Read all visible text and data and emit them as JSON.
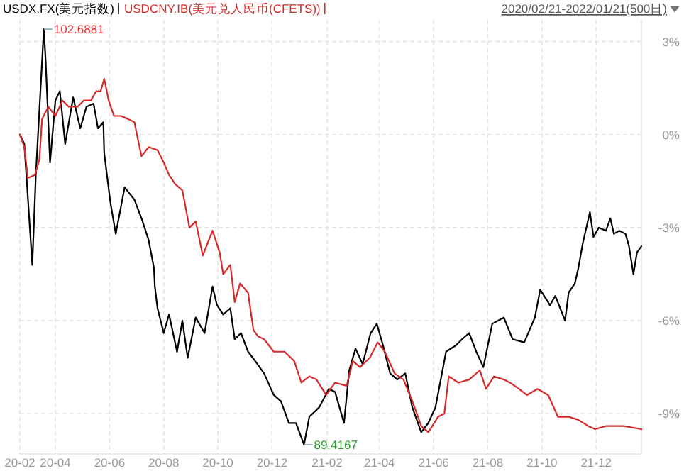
{
  "chart_data": {
    "type": "line",
    "legend": "top left",
    "grid": true,
    "ylim": [
      -10.3,
      3.7
    ],
    "yticks": [
      {
        "value": 3,
        "label": "3%"
      },
      {
        "value": 0,
        "label": "0%"
      },
      {
        "value": -3,
        "label": "-3%"
      },
      {
        "value": -6,
        "label": "-6%"
      },
      {
        "value": -9,
        "label": "-9%"
      }
    ],
    "xlim": [
      "2020-02-21",
      "2022-01-21"
    ],
    "xticks": [
      {
        "value": "2020-02-21",
        "label": "20-02"
      },
      {
        "value": "2020-04-01",
        "label": "20-04"
      },
      {
        "value": "2020-06-01",
        "label": "20-06"
      },
      {
        "value": "2020-08-01",
        "label": "20-08"
      },
      {
        "value": "2020-10-01",
        "label": "20-10"
      },
      {
        "value": "2020-12-01",
        "label": "20-12"
      },
      {
        "value": "2021-02-01",
        "label": "21-02"
      },
      {
        "value": "2021-04-01",
        "label": "21-04"
      },
      {
        "value": "2021-06-01",
        "label": "21-06"
      },
      {
        "value": "2021-08-01",
        "label": "21-08"
      },
      {
        "value": "2021-10-01",
        "label": "21-10"
      },
      {
        "value": "2021-12-01",
        "label": "21-12"
      }
    ],
    "annotations": [
      {
        "text": "102.6881",
        "x": "2020-03-19",
        "y": 3.4
      },
      {
        "text": "89.4167",
        "x": "2021-01-06",
        "y": -10.0
      },
      "2020/02/21-2022/01/21(500日)"
    ],
    "series": [
      {
        "name": "USDX.FX(美元指数)",
        "color": "#000000",
        "x": [
          "2020-02-21",
          "2020-02-26",
          "2020-03-06",
          "2020-03-10",
          "2020-03-19",
          "2020-03-21",
          "2020-03-26",
          "2020-04-01",
          "2020-04-06",
          "2020-04-12",
          "2020-04-21",
          "2020-04-29",
          "2020-05-06",
          "2020-05-14",
          "2020-05-19",
          "2020-05-25",
          "2020-05-26",
          "2020-06-02",
          "2020-06-08",
          "2020-06-18",
          "2020-06-29",
          "2020-07-07",
          "2020-07-15",
          "2020-07-21",
          "2020-07-22",
          "2020-07-25",
          "2020-08-01",
          "2020-08-07",
          "2020-08-16",
          "2020-08-22",
          "2020-08-28",
          "2020-09-06",
          "2020-09-16",
          "2020-09-25",
          "2020-09-30",
          "2020-10-07",
          "2020-10-15",
          "2020-10-20",
          "2020-10-27",
          "2020-11-04",
          "2020-11-12",
          "2020-11-22",
          "2020-12-03",
          "2020-12-11",
          "2020-12-20",
          "2020-12-28",
          "2021-01-06",
          "2021-01-12",
          "2021-01-23",
          "2021-02-03",
          "2021-02-10",
          "2021-02-20",
          "2021-02-26",
          "2021-03-05",
          "2021-03-13",
          "2021-03-22",
          "2021-03-29",
          "2021-04-05",
          "2021-04-13",
          "2021-04-21",
          "2021-04-30",
          "2021-05-08",
          "2021-05-18",
          "2021-05-26",
          "2021-06-03",
          "2021-06-15",
          "2021-06-26",
          "2021-07-03",
          "2021-07-11",
          "2021-07-19",
          "2021-07-27",
          "2021-08-06",
          "2021-08-19",
          "2021-08-29",
          "2021-09-11",
          "2021-09-23",
          "2021-09-29",
          "2021-10-10",
          "2021-10-16",
          "2021-10-27",
          "2021-10-31",
          "2021-11-07",
          "2021-11-11",
          "2021-11-16",
          "2021-11-24",
          "2021-11-28",
          "2021-12-04",
          "2021-12-12",
          "2021-12-17",
          "2021-12-21",
          "2021-12-27",
          "2022-01-03",
          "2022-01-07",
          "2022-01-12",
          "2022-01-16",
          "2022-01-21"
        ],
        "values": [
          0.0,
          -0.3,
          -4.2,
          -1.3,
          3.4,
          2.4,
          -0.9,
          1.1,
          1.4,
          -0.3,
          1.2,
          0.2,
          0.9,
          1.0,
          0.2,
          0.4,
          -0.6,
          -2.2,
          -3.2,
          -1.7,
          -2.1,
          -2.7,
          -3.4,
          -4.3,
          -4.9,
          -5.6,
          -6.4,
          -5.8,
          -7.0,
          -6.0,
          -7.2,
          -5.9,
          -6.4,
          -4.9,
          -5.5,
          -5.8,
          -5.6,
          -6.6,
          -6.4,
          -7.0,
          -7.3,
          -7.7,
          -8.4,
          -8.6,
          -9.3,
          -9.3,
          -10.0,
          -9.1,
          -8.8,
          -8.2,
          -8.3,
          -9.3,
          -7.6,
          -6.9,
          -7.4,
          -6.4,
          -6.1,
          -6.8,
          -7.7,
          -7.9,
          -7.7,
          -8.8,
          -9.6,
          -9.3,
          -8.8,
          -7.0,
          -6.8,
          -6.6,
          -6.4,
          -7.0,
          -7.5,
          -6.1,
          -5.9,
          -6.6,
          -6.7,
          -5.9,
          -5.0,
          -5.5,
          -5.2,
          -6.0,
          -5.1,
          -4.8,
          -4.3,
          -3.5,
          -2.5,
          -3.3,
          -3.0,
          -3.1,
          -2.7,
          -3.2,
          -3.1,
          -3.2,
          -3.6,
          -4.5,
          -3.8,
          -3.6
        ]
      },
      {
        "name": "USDCNY.IB(美元兑人民币(CFETS))",
        "color": "#d42a2a",
        "x": [
          "2020-02-21",
          "2020-02-26",
          "2020-03-01",
          "2020-03-09",
          "2020-03-14",
          "2020-03-17",
          "2020-03-24",
          "2020-04-01",
          "2020-04-09",
          "2020-04-16",
          "2020-04-26",
          "2020-05-03",
          "2020-05-11",
          "2020-05-17",
          "2020-05-22",
          "2020-05-26",
          "2020-05-31",
          "2020-06-06",
          "2020-06-14",
          "2020-06-22",
          "2020-06-29",
          "2020-07-04",
          "2020-07-07",
          "2020-07-15",
          "2020-07-25",
          "2020-08-01",
          "2020-08-07",
          "2020-08-14",
          "2020-08-22",
          "2020-08-30",
          "2020-09-06",
          "2020-09-14",
          "2020-09-25",
          "2020-10-03",
          "2020-10-07",
          "2020-10-15",
          "2020-10-20",
          "2020-10-26",
          "2020-11-04",
          "2020-11-10",
          "2020-11-15",
          "2020-11-22",
          "2020-12-03",
          "2020-12-15",
          "2020-12-26",
          "2021-01-03",
          "2021-01-12",
          "2021-01-20",
          "2021-01-31",
          "2021-02-10",
          "2021-02-23",
          "2021-03-02",
          "2021-03-10",
          "2021-03-21",
          "2021-03-30",
          "2021-04-07",
          "2021-04-18",
          "2021-04-28",
          "2021-05-08",
          "2021-05-18",
          "2021-05-26",
          "2021-06-06",
          "2021-06-13",
          "2021-06-18",
          "2021-06-29",
          "2021-07-11",
          "2021-07-23",
          "2021-07-30",
          "2021-08-08",
          "2021-08-19",
          "2021-08-26",
          "2021-09-05",
          "2021-09-14",
          "2021-09-26",
          "2021-10-08",
          "2021-10-19",
          "2021-10-31",
          "2021-11-11",
          "2021-11-22",
          "2021-11-30",
          "2021-12-12",
          "2022-01-01",
          "2022-01-21"
        ],
        "values": [
          0.0,
          -0.4,
          -1.4,
          -1.3,
          -0.8,
          0.5,
          0.9,
          0.6,
          1.1,
          0.9,
          0.9,
          1.1,
          1.1,
          1.4,
          1.4,
          1.8,
          1.1,
          0.6,
          0.6,
          0.5,
          0.4,
          -0.3,
          -0.7,
          -0.4,
          -0.5,
          -0.9,
          -1.3,
          -1.6,
          -1.8,
          -3.0,
          -2.8,
          -3.9,
          -3.1,
          -3.8,
          -4.5,
          -4.2,
          -5.4,
          -4.8,
          -5.1,
          -6.3,
          -6.5,
          -6.6,
          -7.0,
          -7.0,
          -7.3,
          -8.0,
          -7.8,
          -7.9,
          -8.4,
          -8.0,
          -8.1,
          -7.3,
          -7.5,
          -7.2,
          -6.7,
          -7.0,
          -7.7,
          -7.9,
          -8.6,
          -9.4,
          -9.6,
          -9.1,
          -9.0,
          -7.8,
          -8.0,
          -7.9,
          -7.6,
          -8.2,
          -7.8,
          -7.9,
          -8.0,
          -8.2,
          -8.4,
          -8.2,
          -8.4,
          -9.1,
          -9.1,
          -9.2,
          -9.4,
          -9.5,
          -9.4,
          -9.4,
          -9.5
        ]
      }
    ]
  }
}
